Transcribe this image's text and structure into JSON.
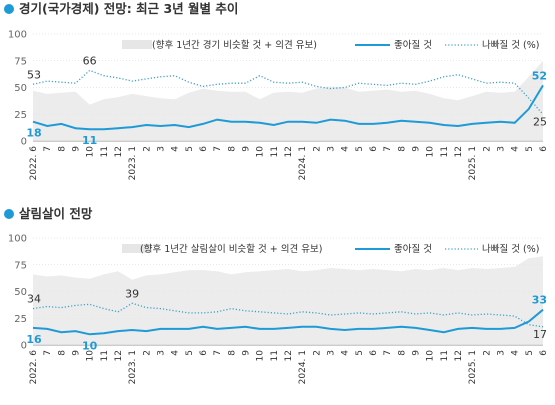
{
  "colors": {
    "good": "#1e9ad6",
    "bad": "#3c9fd0",
    "band": "#e6e6e6",
    "bullet": "#1e9ad6",
    "grid": "#d0d0d0"
  },
  "legend": {
    "band_label": "(향후 1년간 경기 비슷할 것 + 의견 유보)",
    "band_label2": "(향후 1년간 살림살이 비슷할 것 + 의견 유보)",
    "good_label": "좋아질 것",
    "bad_label": "나빠질 것 (%)"
  },
  "x_ticks": [
    "2022. 6",
    "7",
    "8",
    "9",
    "10",
    "11",
    "12",
    "2023. 1",
    "2",
    "3",
    "4",
    "5",
    "6",
    "7",
    "8",
    "9",
    "10",
    "11",
    "12",
    "2024. 1",
    "2",
    "3",
    "4",
    "5",
    "6",
    "7",
    "8",
    "9",
    "10",
    "11",
    "12",
    "2025. 1",
    "2",
    "3",
    "4",
    "5",
    "6"
  ],
  "y_ticks": [
    0,
    25,
    50,
    75,
    100
  ],
  "chart_data": [
    {
      "type": "line",
      "title": "경기(국가경제) 전망:  최근 3년 월별 추이",
      "ylim": [
        0,
        100
      ],
      "x": [
        0,
        1,
        2,
        3,
        4,
        5,
        6,
        7,
        8,
        9,
        10,
        11,
        12,
        13,
        14,
        15,
        16,
        17,
        18,
        19,
        20,
        21,
        22,
        23,
        24,
        25,
        26,
        27,
        28,
        29,
        30,
        31,
        32,
        33,
        34,
        35,
        36
      ],
      "series": [
        {
          "name": "좋아질 것",
          "values": [
            18,
            14,
            16,
            12,
            11,
            11,
            12,
            13,
            15,
            14,
            15,
            13,
            16,
            20,
            18,
            18,
            17,
            15,
            18,
            18,
            17,
            20,
            19,
            16,
            16,
            17,
            19,
            18,
            17,
            15,
            14,
            16,
            17,
            18,
            17,
            30,
            52
          ]
        },
        {
          "name": "나빠질 것 (%)",
          "values": [
            53,
            56,
            55,
            54,
            66,
            61,
            59,
            56,
            58,
            60,
            61,
            55,
            51,
            53,
            54,
            54,
            61,
            55,
            54,
            55,
            51,
            49,
            50,
            54,
            53,
            52,
            54,
            53,
            56,
            60,
            62,
            58,
            54,
            55,
            54,
            40,
            25
          ]
        }
      ],
      "annotations": [
        {
          "series": 1,
          "index": 0,
          "text": "53"
        },
        {
          "series": 1,
          "index": 4,
          "text": "66"
        },
        {
          "series": 0,
          "index": 0,
          "text": "18"
        },
        {
          "series": 0,
          "index": 4,
          "text": "11"
        },
        {
          "series": 0,
          "index": 36,
          "text": "52"
        },
        {
          "series": 1,
          "index": 36,
          "text": "25"
        }
      ]
    },
    {
      "type": "line",
      "title": "살림살이 전망",
      "ylim": [
        0,
        100
      ],
      "x": [
        0,
        1,
        2,
        3,
        4,
        5,
        6,
        7,
        8,
        9,
        10,
        11,
        12,
        13,
        14,
        15,
        16,
        17,
        18,
        19,
        20,
        21,
        22,
        23,
        24,
        25,
        26,
        27,
        28,
        29,
        30,
        31,
        32,
        33,
        34,
        35,
        36
      ],
      "series": [
        {
          "name": "좋아질 것",
          "values": [
            16,
            15,
            12,
            13,
            10,
            11,
            13,
            14,
            13,
            15,
            15,
            15,
            17,
            15,
            16,
            17,
            15,
            15,
            16,
            17,
            17,
            15,
            14,
            15,
            15,
            16,
            17,
            16,
            14,
            12,
            15,
            16,
            15,
            15,
            16,
            22,
            33
          ]
        },
        {
          "name": "나빠질 것 (%)",
          "values": [
            34,
            36,
            35,
            37,
            38,
            34,
            31,
            39,
            35,
            34,
            32,
            30,
            30,
            31,
            34,
            32,
            31,
            30,
            29,
            31,
            30,
            28,
            29,
            30,
            29,
            30,
            31,
            29,
            30,
            28,
            30,
            28,
            29,
            28,
            27,
            19,
            17
          ]
        }
      ],
      "annotations": [
        {
          "series": 1,
          "index": 0,
          "text": "34"
        },
        {
          "series": 1,
          "index": 7,
          "text": "39"
        },
        {
          "series": 0,
          "index": 0,
          "text": "16"
        },
        {
          "series": 0,
          "index": 4,
          "text": "10"
        },
        {
          "series": 0,
          "index": 36,
          "text": "33"
        },
        {
          "series": 1,
          "index": 36,
          "text": "17"
        }
      ]
    }
  ]
}
